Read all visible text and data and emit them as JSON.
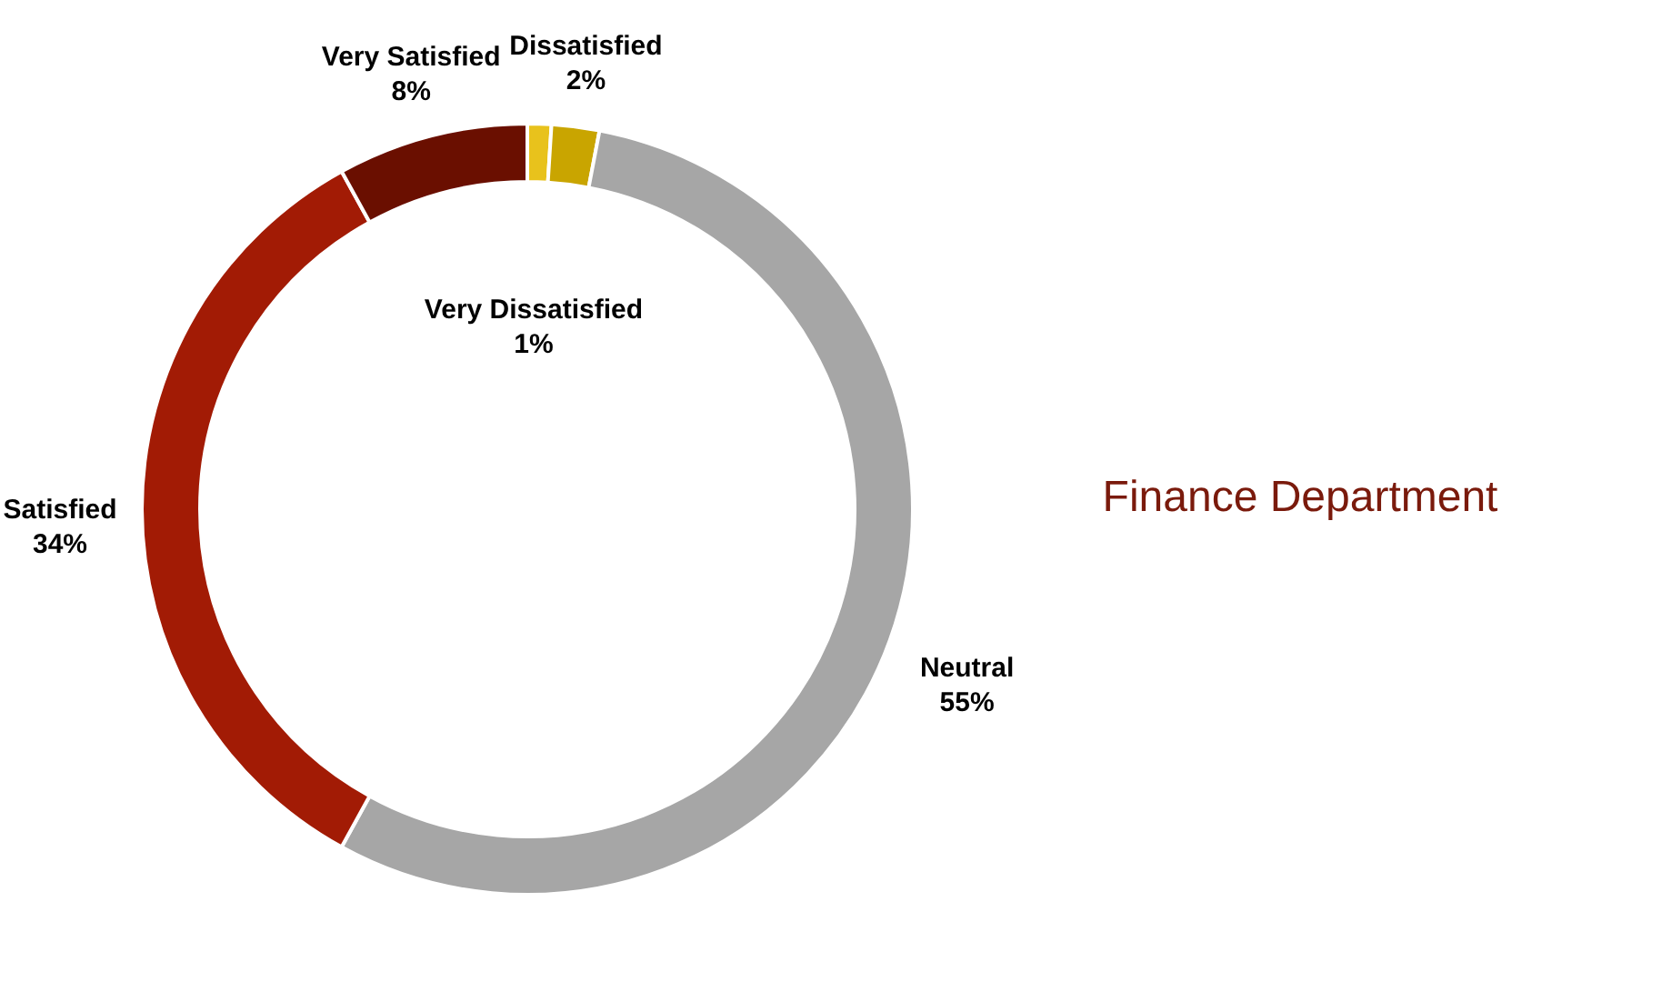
{
  "chart_data": {
    "type": "donut",
    "title": "Finance Department",
    "categories": [
      "Very Dissatisfied",
      "Dissatisfied",
      "Neutral",
      "Satisfied",
      "Very Satisfied"
    ],
    "values": [
      1,
      2,
      55,
      34,
      8
    ],
    "value_labels": [
      "1%",
      "2%",
      "55%",
      "34%",
      "8%"
    ],
    "colors": [
      "#e8c21c",
      "#c9a500",
      "#a6a6a6",
      "#a21b05",
      "#6a0f00"
    ]
  }
}
